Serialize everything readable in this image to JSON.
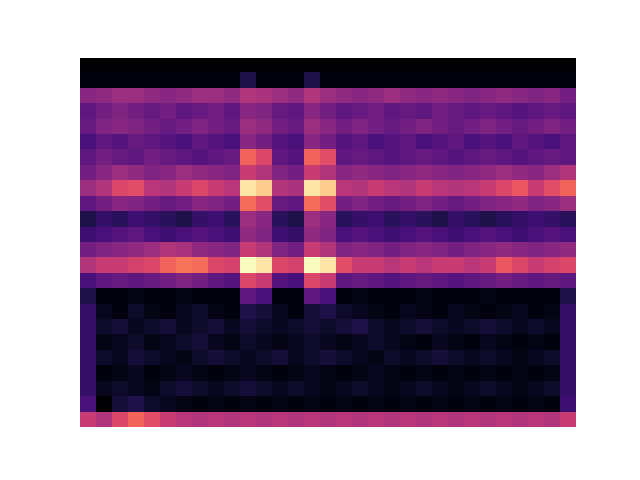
{
  "chart_data": {
    "type": "heatmap",
    "tick_labels": false,
    "cells": [
      [
        0.02,
        0.02,
        0.02,
        0.02,
        0.02,
        0.02,
        0.02,
        0.02,
        0.02,
        0.02,
        0.02,
        0.02,
        0.02,
        0.02,
        0.02,
        0.02,
        0.02,
        0.02,
        0.02,
        0.02,
        0.02,
        0.02,
        0.02,
        0.02,
        0.02,
        0.02,
        0.02,
        0.02,
        0.02,
        0.02,
        0.02
      ],
      [
        0.05,
        0.05,
        0.05,
        0.05,
        0.05,
        0.05,
        0.05,
        0.05,
        0.05,
        0.05,
        0.15,
        0.05,
        0.05,
        0.05,
        0.15,
        0.05,
        0.05,
        0.05,
        0.05,
        0.05,
        0.05,
        0.05,
        0.05,
        0.05,
        0.05,
        0.05,
        0.05,
        0.05,
        0.05,
        0.05,
        0.05
      ],
      [
        0.4,
        0.42,
        0.45,
        0.45,
        0.42,
        0.4,
        0.42,
        0.45,
        0.45,
        0.42,
        0.5,
        0.48,
        0.45,
        0.42,
        0.5,
        0.45,
        0.42,
        0.4,
        0.42,
        0.45,
        0.42,
        0.4,
        0.42,
        0.4,
        0.38,
        0.4,
        0.42,
        0.4,
        0.38,
        0.4,
        0.35
      ],
      [
        0.3,
        0.35,
        0.38,
        0.35,
        0.32,
        0.35,
        0.3,
        0.32,
        0.35,
        0.3,
        0.4,
        0.38,
        0.32,
        0.3,
        0.4,
        0.35,
        0.3,
        0.32,
        0.35,
        0.3,
        0.32,
        0.3,
        0.35,
        0.32,
        0.3,
        0.32,
        0.3,
        0.28,
        0.3,
        0.32,
        0.3
      ],
      [
        0.32,
        0.38,
        0.4,
        0.38,
        0.35,
        0.32,
        0.35,
        0.38,
        0.35,
        0.32,
        0.45,
        0.42,
        0.35,
        0.32,
        0.45,
        0.4,
        0.35,
        0.38,
        0.35,
        0.32,
        0.35,
        0.38,
        0.35,
        0.32,
        0.35,
        0.38,
        0.35,
        0.32,
        0.35,
        0.38,
        0.35
      ],
      [
        0.25,
        0.3,
        0.28,
        0.32,
        0.3,
        0.28,
        0.25,
        0.3,
        0.28,
        0.25,
        0.4,
        0.35,
        0.28,
        0.25,
        0.4,
        0.35,
        0.28,
        0.3,
        0.25,
        0.28,
        0.3,
        0.25,
        0.28,
        0.3,
        0.25,
        0.28,
        0.25,
        0.3,
        0.28,
        0.25,
        0.3
      ],
      [
        0.3,
        0.35,
        0.32,
        0.3,
        0.35,
        0.32,
        0.3,
        0.28,
        0.3,
        0.32,
        0.68,
        0.6,
        0.3,
        0.28,
        0.68,
        0.62,
        0.3,
        0.32,
        0.3,
        0.28,
        0.3,
        0.32,
        0.3,
        0.28,
        0.3,
        0.32,
        0.3,
        0.28,
        0.3,
        0.32,
        0.3
      ],
      [
        0.35,
        0.4,
        0.45,
        0.42,
        0.38,
        0.4,
        0.45,
        0.42,
        0.4,
        0.38,
        0.55,
        0.5,
        0.38,
        0.35,
        0.55,
        0.5,
        0.4,
        0.42,
        0.4,
        0.38,
        0.4,
        0.42,
        0.4,
        0.38,
        0.4,
        0.42,
        0.45,
        0.42,
        0.4,
        0.45,
        0.5
      ],
      [
        0.45,
        0.5,
        0.6,
        0.62,
        0.52,
        0.5,
        0.55,
        0.6,
        0.55,
        0.52,
        0.95,
        0.9,
        0.5,
        0.48,
        0.95,
        0.9,
        0.52,
        0.5,
        0.55,
        0.52,
        0.5,
        0.55,
        0.52,
        0.5,
        0.52,
        0.55,
        0.6,
        0.65,
        0.55,
        0.62,
        0.68
      ],
      [
        0.3,
        0.35,
        0.4,
        0.38,
        0.35,
        0.32,
        0.35,
        0.4,
        0.38,
        0.35,
        0.7,
        0.62,
        0.32,
        0.3,
        0.7,
        0.62,
        0.35,
        0.38,
        0.35,
        0.32,
        0.35,
        0.38,
        0.35,
        0.32,
        0.35,
        0.38,
        0.4,
        0.42,
        0.38,
        0.4,
        0.45
      ],
      [
        0.15,
        0.2,
        0.18,
        0.22,
        0.2,
        0.18,
        0.15,
        0.2,
        0.22,
        0.18,
        0.45,
        0.4,
        0.18,
        0.15,
        0.45,
        0.4,
        0.18,
        0.2,
        0.22,
        0.18,
        0.2,
        0.18,
        0.15,
        0.2,
        0.18,
        0.15,
        0.18,
        0.2,
        0.22,
        0.2,
        0.18
      ],
      [
        0.22,
        0.25,
        0.28,
        0.3,
        0.25,
        0.22,
        0.25,
        0.28,
        0.25,
        0.22,
        0.42,
        0.38,
        0.22,
        0.2,
        0.42,
        0.38,
        0.25,
        0.28,
        0.25,
        0.22,
        0.25,
        0.28,
        0.25,
        0.22,
        0.25,
        0.28,
        0.25,
        0.22,
        0.25,
        0.28,
        0.25
      ],
      [
        0.35,
        0.38,
        0.4,
        0.42,
        0.45,
        0.5,
        0.48,
        0.42,
        0.4,
        0.38,
        0.55,
        0.5,
        0.38,
        0.35,
        0.55,
        0.5,
        0.38,
        0.4,
        0.38,
        0.35,
        0.38,
        0.4,
        0.38,
        0.35,
        0.38,
        0.4,
        0.42,
        0.4,
        0.38,
        0.4,
        0.42
      ],
      [
        0.5,
        0.55,
        0.55,
        0.58,
        0.6,
        0.68,
        0.72,
        0.7,
        0.6,
        0.58,
        1.0,
        0.95,
        0.6,
        0.58,
        1.0,
        0.95,
        0.62,
        0.55,
        0.55,
        0.52,
        0.55,
        0.52,
        0.55,
        0.55,
        0.52,
        0.55,
        0.65,
        0.6,
        0.55,
        0.58,
        0.6
      ],
      [
        0.25,
        0.3,
        0.32,
        0.3,
        0.32,
        0.35,
        0.38,
        0.35,
        0.3,
        0.28,
        0.6,
        0.55,
        0.28,
        0.25,
        0.6,
        0.55,
        0.3,
        0.32,
        0.3,
        0.28,
        0.3,
        0.32,
        0.3,
        0.28,
        0.3,
        0.32,
        0.35,
        0.32,
        0.3,
        0.32,
        0.3
      ],
      [
        0.15,
        0.05,
        0.05,
        0.06,
        0.05,
        0.05,
        0.06,
        0.05,
        0.05,
        0.05,
        0.3,
        0.25,
        0.05,
        0.05,
        0.3,
        0.25,
        0.05,
        0.06,
        0.05,
        0.05,
        0.05,
        0.06,
        0.05,
        0.05,
        0.05,
        0.06,
        0.05,
        0.05,
        0.05,
        0.05,
        0.15
      ],
      [
        0.2,
        0.08,
        0.05,
        0.1,
        0.06,
        0.05,
        0.08,
        0.1,
        0.06,
        0.05,
        0.15,
        0.12,
        0.08,
        0.05,
        0.12,
        0.15,
        0.1,
        0.08,
        0.06,
        0.05,
        0.08,
        0.06,
        0.05,
        0.08,
        0.06,
        0.05,
        0.06,
        0.08,
        0.05,
        0.06,
        0.2
      ],
      [
        0.2,
        0.1,
        0.12,
        0.08,
        0.1,
        0.12,
        0.08,
        0.1,
        0.12,
        0.08,
        0.12,
        0.1,
        0.08,
        0.1,
        0.12,
        0.1,
        0.12,
        0.15,
        0.1,
        0.08,
        0.1,
        0.12,
        0.1,
        0.08,
        0.1,
        0.12,
        0.1,
        0.08,
        0.1,
        0.08,
        0.2
      ],
      [
        0.2,
        0.06,
        0.08,
        0.1,
        0.06,
        0.08,
        0.1,
        0.12,
        0.08,
        0.06,
        0.1,
        0.08,
        0.06,
        0.08,
        0.1,
        0.08,
        0.06,
        0.08,
        0.1,
        0.08,
        0.06,
        0.05,
        0.08,
        0.06,
        0.05,
        0.08,
        0.06,
        0.05,
        0.06,
        0.05,
        0.2
      ],
      [
        0.2,
        0.1,
        0.08,
        0.12,
        0.1,
        0.08,
        0.06,
        0.1,
        0.12,
        0.1,
        0.08,
        0.1,
        0.12,
        0.08,
        0.1,
        0.12,
        0.1,
        0.08,
        0.06,
        0.1,
        0.08,
        0.1,
        0.12,
        0.1,
        0.08,
        0.1,
        0.08,
        0.06,
        0.08,
        0.1,
        0.2
      ],
      [
        0.2,
        0.05,
        0.06,
        0.08,
        0.05,
        0.06,
        0.08,
        0.06,
        0.05,
        0.06,
        0.08,
        0.06,
        0.05,
        0.06,
        0.08,
        0.06,
        0.05,
        0.06,
        0.08,
        0.06,
        0.05,
        0.06,
        0.05,
        0.06,
        0.05,
        0.06,
        0.05,
        0.06,
        0.05,
        0.06,
        0.2
      ],
      [
        0.2,
        0.08,
        0.1,
        0.08,
        0.06,
        0.1,
        0.12,
        0.1,
        0.08,
        0.1,
        0.12,
        0.1,
        0.08,
        0.1,
        0.08,
        0.06,
        0.08,
        0.1,
        0.08,
        0.06,
        0.08,
        0.1,
        0.08,
        0.06,
        0.08,
        0.1,
        0.08,
        0.06,
        0.08,
        0.1,
        0.2
      ],
      [
        0.25,
        0.02,
        0.12,
        0.15,
        0.1,
        0.08,
        0.06,
        0.05,
        0.06,
        0.05,
        0.06,
        0.05,
        0.06,
        0.05,
        0.06,
        0.05,
        0.06,
        0.05,
        0.06,
        0.05,
        0.06,
        0.05,
        0.06,
        0.05,
        0.06,
        0.05,
        0.06,
        0.05,
        0.06,
        0.05,
        0.22
      ],
      [
        0.55,
        0.5,
        0.6,
        0.68,
        0.62,
        0.55,
        0.52,
        0.5,
        0.52,
        0.5,
        0.52,
        0.5,
        0.52,
        0.5,
        0.52,
        0.5,
        0.52,
        0.5,
        0.52,
        0.5,
        0.52,
        0.5,
        0.52,
        0.5,
        0.52,
        0.5,
        0.52,
        0.5,
        0.52,
        0.5,
        0.55
      ]
    ]
  }
}
